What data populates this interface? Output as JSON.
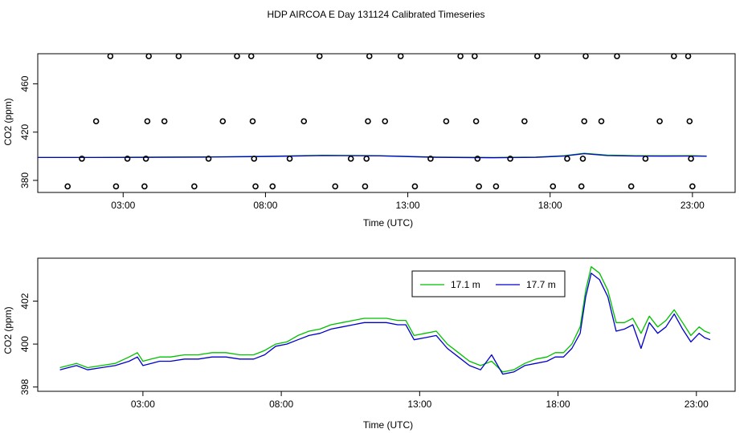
{
  "figure": {
    "title": "HDP AIRCOA E  Day 131124  Calibrated Timeseries"
  },
  "chart_data": [
    {
      "type": "scatter+line",
      "title": "HDP AIRCOA E  Day 131124  Calibrated Timeseries",
      "xlabel": "Time (UTC)",
      "ylabel": "CO2 (ppm)",
      "x_unit": "hours UTC",
      "xlim": [
        0.0,
        24.5
      ],
      "ylim": [
        370,
        485
      ],
      "x_ticks": [
        3,
        8,
        13,
        18,
        23
      ],
      "x_tick_labels": [
        "03:00",
        "08:00",
        "13:00",
        "18:00",
        "23:00"
      ],
      "y_ticks": [
        380,
        420,
        460
      ],
      "y_tick_labels": [
        "380",
        "420",
        "460"
      ],
      "grid": false,
      "legend": "none",
      "calibration_points": [
        {
          "x": 1.05,
          "y": 375
        },
        {
          "x": 1.55,
          "y": 398
        },
        {
          "x": 2.05,
          "y": 429
        },
        {
          "x": 2.55,
          "y": 483
        },
        {
          "x": 2.75,
          "y": 375
        },
        {
          "x": 3.15,
          "y": 398
        },
        {
          "x": 3.75,
          "y": 375
        },
        {
          "x": 3.8,
          "y": 398
        },
        {
          "x": 3.85,
          "y": 429
        },
        {
          "x": 3.9,
          "y": 483
        },
        {
          "x": 4.45,
          "y": 429
        },
        {
          "x": 4.95,
          "y": 483
        },
        {
          "x": 5.5,
          "y": 375
        },
        {
          "x": 6.0,
          "y": 398
        },
        {
          "x": 6.5,
          "y": 429
        },
        {
          "x": 7.0,
          "y": 483
        },
        {
          "x": 7.5,
          "y": 483
        },
        {
          "x": 7.55,
          "y": 429
        },
        {
          "x": 7.6,
          "y": 398
        },
        {
          "x": 7.65,
          "y": 375
        },
        {
          "x": 8.25,
          "y": 375
        },
        {
          "x": 8.85,
          "y": 398
        },
        {
          "x": 9.35,
          "y": 429
        },
        {
          "x": 9.9,
          "y": 483
        },
        {
          "x": 10.45,
          "y": 375
        },
        {
          "x": 11.0,
          "y": 398
        },
        {
          "x": 11.5,
          "y": 375
        },
        {
          "x": 11.55,
          "y": 398
        },
        {
          "x": 11.6,
          "y": 429
        },
        {
          "x": 11.65,
          "y": 483
        },
        {
          "x": 12.2,
          "y": 429
        },
        {
          "x": 12.75,
          "y": 483
        },
        {
          "x": 13.25,
          "y": 375
        },
        {
          "x": 13.8,
          "y": 398
        },
        {
          "x": 14.35,
          "y": 429
        },
        {
          "x": 14.85,
          "y": 483
        },
        {
          "x": 15.35,
          "y": 483
        },
        {
          "x": 15.4,
          "y": 429
        },
        {
          "x": 15.45,
          "y": 398
        },
        {
          "x": 15.5,
          "y": 375
        },
        {
          "x": 16.1,
          "y": 375
        },
        {
          "x": 16.6,
          "y": 398
        },
        {
          "x": 17.1,
          "y": 429
        },
        {
          "x": 17.55,
          "y": 483
        },
        {
          "x": 18.1,
          "y": 375
        },
        {
          "x": 18.6,
          "y": 398
        },
        {
          "x": 19.1,
          "y": 375
        },
        {
          "x": 19.15,
          "y": 398
        },
        {
          "x": 19.2,
          "y": 429
        },
        {
          "x": 19.25,
          "y": 483
        },
        {
          "x": 19.8,
          "y": 429
        },
        {
          "x": 20.35,
          "y": 483
        },
        {
          "x": 20.85,
          "y": 375
        },
        {
          "x": 21.35,
          "y": 398
        },
        {
          "x": 21.85,
          "y": 429
        },
        {
          "x": 22.35,
          "y": 483
        },
        {
          "x": 22.85,
          "y": 483
        },
        {
          "x": 22.9,
          "y": 429
        },
        {
          "x": 22.95,
          "y": 398
        },
        {
          "x": 23.0,
          "y": 375
        }
      ],
      "series": [
        {
          "color": "#00c000",
          "x": [
            0.0,
            2.0,
            4.0,
            6.0,
            8.0,
            10.0,
            12.0,
            14.0,
            16.0,
            17.5,
            18.5,
            19.2,
            20.0,
            21.0,
            22.0,
            23.0,
            23.5
          ],
          "y": [
            399,
            399,
            399.3,
            399.5,
            400,
            400.8,
            400.5,
            399.3,
            399,
            399.3,
            400.5,
            402.5,
            401,
            400.5,
            400.4,
            400.5,
            400.2
          ]
        },
        {
          "color": "#0000cc",
          "x": [
            0.0,
            2.0,
            4.0,
            6.0,
            8.0,
            10.0,
            12.0,
            14.0,
            16.0,
            17.5,
            18.5,
            19.2,
            20.0,
            21.0,
            22.0,
            23.0,
            23.5
          ],
          "y": [
            399,
            399,
            399.1,
            399.3,
            399.8,
            400.6,
            400.3,
            399.1,
            398.8,
            399.1,
            400.2,
            402.2,
            400.6,
            400.2,
            400.1,
            400.2,
            400.0
          ]
        }
      ]
    },
    {
      "type": "line",
      "xlabel": "Time (UTC)",
      "ylabel": "CO2 (ppm)",
      "x_unit": "hours UTC",
      "xlim": [
        -0.8,
        24.4
      ],
      "ylim": [
        397.8,
        404.0
      ],
      "x_ticks": [
        3,
        8,
        13,
        18,
        23
      ],
      "x_tick_labels": [
        "03:00",
        "08:00",
        "13:00",
        "18:00",
        "23:00"
      ],
      "y_ticks": [
        398,
        400,
        402
      ],
      "y_tick_labels": [
        "398",
        "400",
        "402"
      ],
      "grid": false,
      "legend": "top-center",
      "series": [
        {
          "name": "17.1 m",
          "color": "#00c000",
          "x": [
            0.0,
            0.3,
            0.6,
            1.0,
            1.5,
            2.0,
            2.5,
            2.8,
            3.0,
            3.3,
            3.6,
            4.0,
            4.5,
            5.0,
            5.5,
            6.0,
            6.5,
            7.0,
            7.4,
            7.8,
            8.2,
            8.6,
            9.0,
            9.4,
            9.8,
            10.2,
            10.6,
            11.0,
            11.4,
            11.8,
            12.2,
            12.5,
            12.8,
            13.2,
            13.6,
            14.0,
            14.4,
            14.8,
            15.2,
            15.6,
            16.0,
            16.4,
            16.8,
            17.2,
            17.6,
            17.9,
            18.2,
            18.5,
            18.8,
            19.0,
            19.2,
            19.5,
            19.8,
            20.1,
            20.4,
            20.7,
            21.0,
            21.3,
            21.6,
            21.9,
            22.2,
            22.5,
            22.8,
            23.1,
            23.3,
            23.5
          ],
          "y": [
            398.9,
            399.0,
            399.1,
            398.9,
            399.0,
            399.1,
            399.4,
            399.6,
            399.2,
            399.3,
            399.4,
            399.4,
            399.5,
            399.5,
            399.6,
            399.6,
            399.5,
            399.5,
            399.7,
            400.0,
            400.1,
            400.4,
            400.6,
            400.7,
            400.9,
            401.0,
            401.1,
            401.2,
            401.2,
            401.2,
            401.1,
            401.1,
            400.4,
            400.5,
            400.6,
            400.0,
            399.6,
            399.2,
            399.0,
            399.2,
            398.7,
            398.8,
            399.1,
            399.3,
            399.4,
            399.6,
            399.6,
            400.0,
            400.8,
            402.5,
            403.6,
            403.3,
            402.5,
            401.0,
            401.0,
            401.2,
            400.5,
            401.3,
            400.8,
            401.1,
            401.6,
            401.0,
            400.4,
            400.8,
            400.6,
            400.5
          ]
        },
        {
          "name": "17.7 m",
          "color": "#0000cc",
          "x": [
            0.0,
            0.3,
            0.6,
            1.0,
            1.5,
            2.0,
            2.5,
            2.8,
            3.0,
            3.3,
            3.6,
            4.0,
            4.5,
            5.0,
            5.5,
            6.0,
            6.5,
            7.0,
            7.4,
            7.8,
            8.2,
            8.6,
            9.0,
            9.4,
            9.8,
            10.2,
            10.6,
            11.0,
            11.4,
            11.8,
            12.2,
            12.5,
            12.8,
            13.2,
            13.6,
            14.0,
            14.4,
            14.8,
            15.2,
            15.6,
            16.0,
            16.4,
            16.8,
            17.2,
            17.6,
            17.9,
            18.2,
            18.5,
            18.8,
            19.0,
            19.2,
            19.5,
            19.8,
            20.1,
            20.4,
            20.7,
            21.0,
            21.3,
            21.6,
            21.9,
            22.2,
            22.5,
            22.8,
            23.1,
            23.3,
            23.5
          ],
          "y": [
            398.8,
            398.9,
            399.0,
            398.8,
            398.9,
            399.0,
            399.2,
            399.4,
            399.0,
            399.1,
            399.2,
            399.2,
            399.3,
            399.3,
            399.4,
            399.4,
            399.3,
            399.3,
            399.5,
            399.9,
            400.0,
            400.2,
            400.4,
            400.5,
            400.7,
            400.8,
            400.9,
            401.0,
            401.0,
            401.0,
            400.9,
            400.9,
            400.2,
            400.3,
            400.4,
            399.8,
            399.4,
            399.0,
            398.8,
            399.5,
            398.6,
            398.7,
            399.0,
            399.1,
            399.2,
            399.4,
            399.4,
            399.8,
            400.5,
            402.2,
            403.3,
            403.0,
            402.2,
            400.6,
            400.7,
            400.9,
            399.8,
            401.0,
            400.5,
            400.8,
            401.4,
            400.7,
            400.1,
            400.5,
            400.3,
            400.2
          ]
        }
      ]
    }
  ]
}
